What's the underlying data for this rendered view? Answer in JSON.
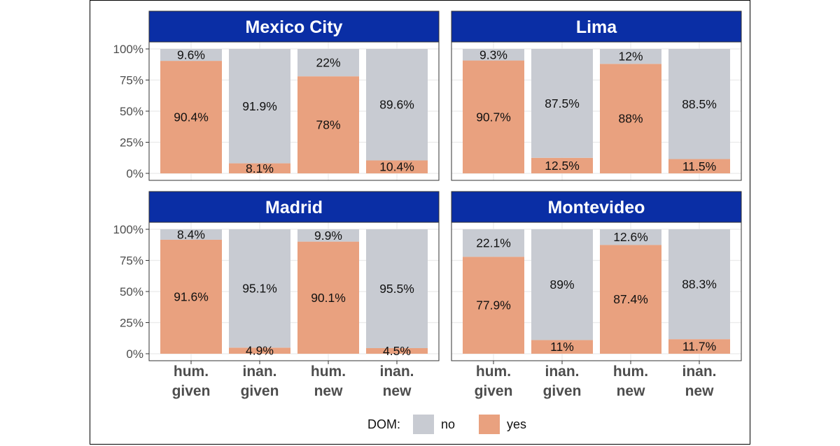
{
  "chart_data": {
    "type": "bar",
    "stacked": true,
    "y_scale": "percent",
    "ylim": [
      0,
      100
    ],
    "y_ticks": [
      "0%",
      "25%",
      "50%",
      "75%",
      "100%"
    ],
    "categories": [
      [
        "hum.",
        "given"
      ],
      [
        "inan.",
        "given"
      ],
      [
        "hum.",
        "new"
      ],
      [
        "inan.",
        "new"
      ]
    ],
    "legend": {
      "title": "DOM:",
      "position": "bottom",
      "entries": [
        {
          "key": "no",
          "label": "no",
          "color": "#c8cbd2"
        },
        {
          "key": "yes",
          "label": "yes",
          "color": "#e9a17f"
        }
      ]
    },
    "panels": [
      {
        "title": "Mexico City",
        "yes": [
          90.4,
          8.1,
          78,
          10.4
        ],
        "no": [
          9.6,
          91.9,
          22,
          89.6
        ],
        "yes_labels": [
          "90.4%",
          "8.1%",
          "78%",
          "10.4%"
        ],
        "no_labels": [
          "9.6%",
          "91.9%",
          "22%",
          "89.6%"
        ]
      },
      {
        "title": "Lima",
        "yes": [
          90.7,
          12.5,
          88,
          11.5
        ],
        "no": [
          9.3,
          87.5,
          12,
          88.5
        ],
        "yes_labels": [
          "90.7%",
          "12.5%",
          "88%",
          "11.5%"
        ],
        "no_labels": [
          "9.3%",
          "87.5%",
          "12%",
          "88.5%"
        ]
      },
      {
        "title": "Madrid",
        "yes": [
          91.6,
          4.9,
          90.1,
          4.5
        ],
        "no": [
          8.4,
          95.1,
          9.9,
          95.5
        ],
        "yes_labels": [
          "91.6%",
          "4.9%",
          "90.1%",
          "4.5%"
        ],
        "no_labels": [
          "8.4%",
          "95.1%",
          "9.9%",
          "95.5%"
        ]
      },
      {
        "title": "Montevideo",
        "yes": [
          77.9,
          11,
          87.4,
          11.7
        ],
        "no": [
          22.1,
          89,
          12.6,
          88.3
        ],
        "yes_labels": [
          "77.9%",
          "11%",
          "87.4%",
          "11.7%"
        ],
        "no_labels": [
          "22.1%",
          "89%",
          "12.6%",
          "88.3%"
        ]
      }
    ],
    "colors": {
      "strip_bg": "#0a2ea5",
      "strip_text": "#ffffff",
      "panel_border": "#333333",
      "grid": "#ebebeb"
    }
  }
}
